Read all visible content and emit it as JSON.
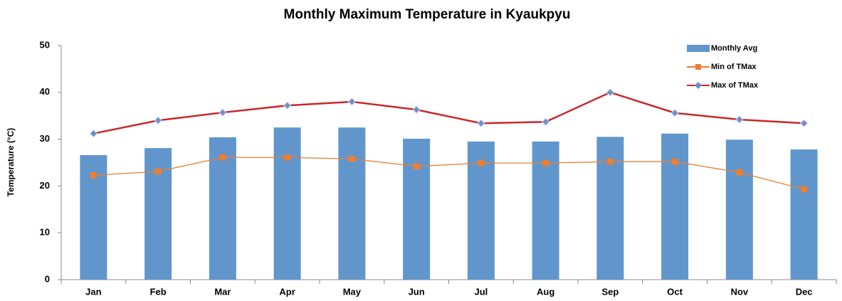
{
  "chart_data": {
    "type": "bar",
    "title": "Monthly Maximum Temperature in Kyaukpyu",
    "y_label": "Temperature (°C)",
    "categories": [
      "Jan",
      "Feb",
      "Mar",
      "Apr",
      "May",
      "Jun",
      "Jul",
      "Aug",
      "Sep",
      "Oct",
      "Nov",
      "Dec"
    ],
    "series": [
      {
        "name": "Monthly Avg",
        "type": "bar",
        "color": "#6096cc",
        "values": [
          26.6,
          28.1,
          30.4,
          32.5,
          32.5,
          30.1,
          29.5,
          29.5,
          30.5,
          31.2,
          29.9,
          27.8
        ]
      },
      {
        "name": "Min of TMax",
        "type": "line",
        "color": "#ed7d31",
        "marker": "square",
        "values": [
          22.3,
          23.1,
          26.1,
          26.1,
          25.8,
          24.2,
          24.9,
          24.9,
          25.2,
          25.2,
          22.9,
          19.3
        ]
      },
      {
        "name": "Max of TMax",
        "type": "line",
        "color": "#c8282a",
        "marker": "diamond",
        "values": [
          31.2,
          34.0,
          35.7,
          37.2,
          38.0,
          36.3,
          33.4,
          33.7,
          40.0,
          35.6,
          34.2,
          33.4
        ]
      }
    ],
    "ylim": [
      0,
      50
    ],
    "yticks": [
      0,
      10,
      20,
      30,
      40,
      50
    ],
    "grid": false,
    "legend": "top-right"
  }
}
